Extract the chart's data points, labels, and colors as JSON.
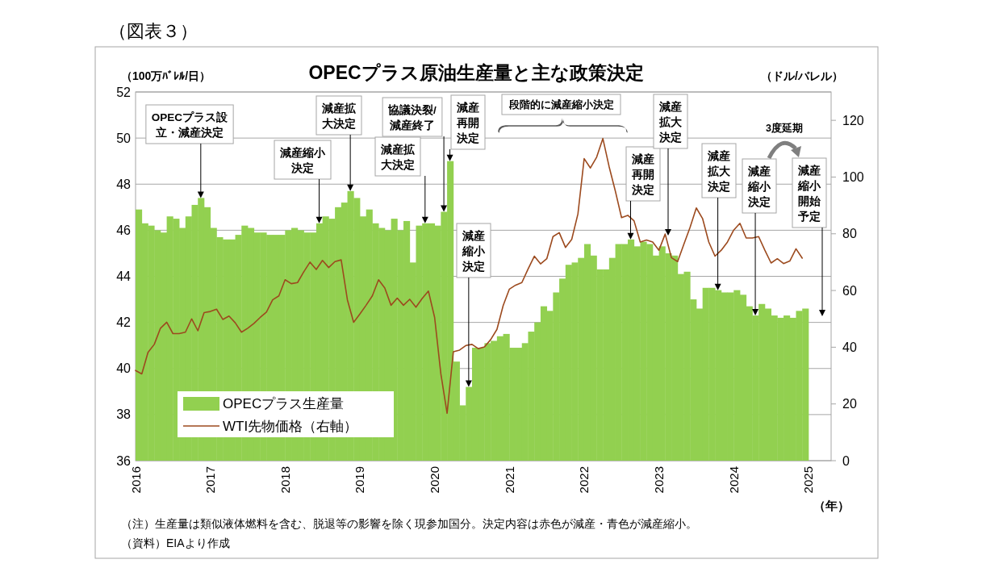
{
  "chart_data": {
    "type": "bar",
    "title": "OPECプラス原油生産量と主な政策決定",
    "ylabel": "（100万ﾊﾞﾚﾙ/日）",
    "y2label": "（ドル/バレル）",
    "xlabel": "（年）",
    "x": [
      "2016-01",
      "2016-02",
      "2016-03",
      "2016-04",
      "2016-05",
      "2016-06",
      "2016-07",
      "2016-08",
      "2016-09",
      "2016-10",
      "2016-11",
      "2016-12",
      "2017-01",
      "2017-02",
      "2017-03",
      "2017-04",
      "2017-05",
      "2017-06",
      "2017-07",
      "2017-08",
      "2017-09",
      "2017-10",
      "2017-11",
      "2017-12",
      "2018-01",
      "2018-02",
      "2018-03",
      "2018-04",
      "2018-05",
      "2018-06",
      "2018-07",
      "2018-08",
      "2018-09",
      "2018-10",
      "2018-11",
      "2018-12",
      "2019-01",
      "2019-02",
      "2019-03",
      "2019-04",
      "2019-05",
      "2019-06",
      "2019-07",
      "2019-08",
      "2019-09",
      "2019-10",
      "2019-11",
      "2019-12",
      "2020-01",
      "2020-02",
      "2020-03",
      "2020-04",
      "2020-05",
      "2020-06",
      "2020-07",
      "2020-08",
      "2020-09",
      "2020-10",
      "2020-11",
      "2020-12",
      "2021-01",
      "2021-02",
      "2021-03",
      "2021-04",
      "2021-05",
      "2021-06",
      "2021-07",
      "2021-08",
      "2021-09",
      "2021-10",
      "2021-11",
      "2021-12",
      "2022-01",
      "2022-02",
      "2022-03",
      "2022-04",
      "2022-05",
      "2022-06",
      "2022-07",
      "2022-08",
      "2022-09",
      "2022-10",
      "2022-11",
      "2022-12",
      "2023-01",
      "2023-02",
      "2023-03",
      "2023-04",
      "2023-05",
      "2023-06",
      "2023-07",
      "2023-08",
      "2023-09",
      "2023-10",
      "2023-11",
      "2023-12",
      "2024-01",
      "2024-02",
      "2024-03",
      "2024-04",
      "2024-05",
      "2024-06",
      "2024-07",
      "2024-08",
      "2024-09",
      "2024-10",
      "2024-11",
      "2024-12"
    ],
    "series": [
      {
        "name": "OPECプラス生産量",
        "color": "#92d050",
        "values": [
          46.9,
          46.3,
          46.2,
          46.0,
          45.9,
          46.6,
          46.5,
          46.1,
          46.6,
          47.1,
          47.4,
          47.0,
          46.1,
          45.7,
          45.6,
          45.6,
          45.8,
          46.2,
          46.1,
          45.9,
          45.9,
          45.8,
          45.8,
          45.8,
          46.0,
          46.1,
          46.0,
          45.9,
          45.9,
          46.3,
          46.6,
          46.5,
          47.0,
          47.2,
          47.7,
          47.4,
          46.6,
          46.9,
          46.3,
          46.1,
          46.0,
          46.5,
          46.0,
          46.4,
          44.6,
          46.2,
          46.3,
          46.3,
          46.2,
          46.8,
          49.0,
          40.3,
          38.4,
          39.2,
          40.9,
          40.9,
          41.1,
          41.2,
          41.4,
          41.5,
          40.9,
          40.9,
          41.1,
          41.6,
          42.0,
          42.7,
          42.5,
          43.3,
          43.9,
          44.5,
          44.6,
          44.8,
          45.4,
          44.9,
          44.3,
          44.3,
          44.8,
          45.4,
          45.4,
          45.6,
          45.3,
          45.5,
          45.4,
          44.9,
          45.3,
          45.0,
          44.9,
          44.1,
          44.2,
          43.0,
          42.6,
          43.5,
          43.5,
          43.4,
          43.3,
          43.3,
          43.4,
          43.2,
          42.7,
          42.3,
          42.8,
          42.6,
          42.3,
          42.2,
          42.3,
          42.2,
          42.5,
          42.6
        ]
      },
      {
        "name": "WTI先物価格（右軸）",
        "type": "line",
        "axis": "y2",
        "color": "#9c4a1e",
        "values": [
          31.8,
          30.6,
          38.2,
          41.0,
          46.7,
          48.8,
          44.8,
          44.8,
          45.3,
          50.0,
          45.8,
          52.2,
          52.6,
          53.4,
          49.8,
          51.0,
          48.6,
          45.3,
          46.7,
          48.4,
          50.5,
          52.4,
          56.7,
          58.1,
          63.8,
          62.4,
          62.8,
          66.6,
          70.0,
          67.4,
          70.6,
          68.1,
          70.2,
          70.8,
          56.7,
          48.8,
          51.7,
          54.8,
          58.1,
          63.8,
          60.9,
          54.8,
          57.3,
          54.8,
          56.9,
          54.1,
          57.2,
          59.8,
          50.5,
          30.6,
          16.7,
          38.4,
          39.0,
          40.6,
          41.0,
          39.5,
          40.1,
          42.7,
          46.3,
          54.7,
          60.5,
          61.9,
          62.8,
          67.6,
          72.1,
          69.4,
          71.2,
          79.0,
          80.4,
          75.2,
          78.0,
          87.0,
          106.5,
          103.2,
          107.0,
          113.6,
          103.7,
          95.1,
          85.7,
          86.5,
          84.6,
          77.1,
          77.8,
          77.1,
          74.2,
          79.9,
          71.6,
          70.2,
          76.3,
          82.3,
          89.1,
          85.4,
          77.1,
          72.1,
          74.2,
          77.1,
          81.3,
          83.7,
          78.5,
          78.5,
          79.0,
          74.2,
          69.7,
          71.2,
          69.5,
          70.4,
          74.7,
          71.4
        ]
      }
    ],
    "xlim": [
      "2016-01",
      "2025-04-20"
    ],
    "xticks": [
      "2016",
      "2017",
      "2018",
      "2019",
      "2020",
      "2021",
      "2022",
      "2023",
      "2024",
      "2025"
    ],
    "ylim": [
      36,
      52
    ],
    "yticks": [
      36,
      38,
      40,
      42,
      44,
      46,
      48,
      50,
      52
    ],
    "y2lim": [
      0,
      130
    ],
    "y2ticks": [
      0,
      20,
      40,
      60,
      80,
      100,
      120
    ],
    "grid": "y",
    "legend": "bottom left",
    "annotations": [
      "（図表３）",
      {
        "text": "OPECプラス設立・減産決定",
        "x": "2016-11-15",
        "y": 47.4
      },
      {
        "text": "減産縮小決定",
        "x": "2018-06-15",
        "y": 46.3
      },
      {
        "text": "減産拡大決定",
        "x": "2019-11-15",
        "y": 46.3
      },
      {
        "text": "減産拡大決定",
        "x": "2018-11-15",
        "y": 47.7
      },
      {
        "text": "協議決裂/減産終了",
        "x": "2020-02-15",
        "y": 46.8
      },
      {
        "text": "減産再開決定",
        "x": "2020-03-15",
        "y": 49.0
      },
      {
        "text": "減産縮小決定",
        "x": "2020-06-15",
        "y": 39.2
      },
      "段階的に減産縮小決定",
      {
        "text": "減産再開決定",
        "x": "2022-08-15",
        "y": 45.6
      },
      "減産拡大決定",
      {
        "text": "減産拡大決定",
        "x": "2023-10-15",
        "y": 43.4
      },
      {
        "text": "減産縮小決定",
        "x": "2024-04-15",
        "y": 42.3
      },
      "減産縮小開始予定",
      "3度延期",
      "（注）生産量は類似液体燃料を含む、脱退等の影響を除く現参加国分。決定内容は赤色が減産・青色が減産縮小。",
      "（資料）EIAより作成"
    ]
  }
}
